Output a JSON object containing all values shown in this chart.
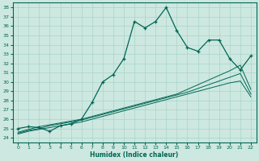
{
  "xlabel": "Humidex (Indice chaleur)",
  "ylabel": "",
  "bg_color": "#cde8e0",
  "grid_color": "#a8d4ca",
  "line_color": "#006655",
  "xlim": [
    -0.5,
    22.5
  ],
  "ylim": [
    23.5,
    38.5
  ],
  "yticks": [
    24,
    25,
    26,
    27,
    28,
    29,
    30,
    31,
    32,
    33,
    34,
    35,
    36,
    37,
    38
  ],
  "xticks": [
    0,
    1,
    2,
    3,
    4,
    5,
    6,
    7,
    8,
    9,
    10,
    11,
    12,
    13,
    14,
    15,
    16,
    17,
    18,
    19,
    20,
    21,
    22
  ],
  "main_series": [
    25.0,
    25.2,
    25.1,
    24.7,
    25.3,
    25.5,
    26.0,
    27.8,
    30.0,
    30.8,
    32.5,
    36.5,
    35.8,
    36.5,
    38.0,
    35.5,
    33.7,
    33.3,
    34.5,
    34.5,
    32.5,
    31.3,
    32.8
  ],
  "line2": [
    24.6,
    24.9,
    25.2,
    25.4,
    25.6,
    25.8,
    26.0,
    26.3,
    26.6,
    26.9,
    27.2,
    27.5,
    27.8,
    28.1,
    28.4,
    28.7,
    29.2,
    29.7,
    30.2,
    30.7,
    31.2,
    31.8,
    29.2
  ],
  "line3": [
    24.5,
    24.8,
    25.0,
    25.3,
    25.5,
    25.7,
    25.9,
    26.2,
    26.5,
    26.8,
    27.1,
    27.4,
    27.7,
    28.0,
    28.3,
    28.6,
    28.9,
    29.3,
    29.7,
    30.1,
    30.5,
    30.9,
    28.7
  ],
  "line4": [
    24.4,
    24.7,
    24.9,
    25.1,
    25.3,
    25.5,
    25.7,
    26.0,
    26.3,
    26.6,
    26.9,
    27.2,
    27.5,
    27.8,
    28.1,
    28.4,
    28.7,
    29.0,
    29.3,
    29.6,
    29.9,
    30.1,
    28.4
  ]
}
